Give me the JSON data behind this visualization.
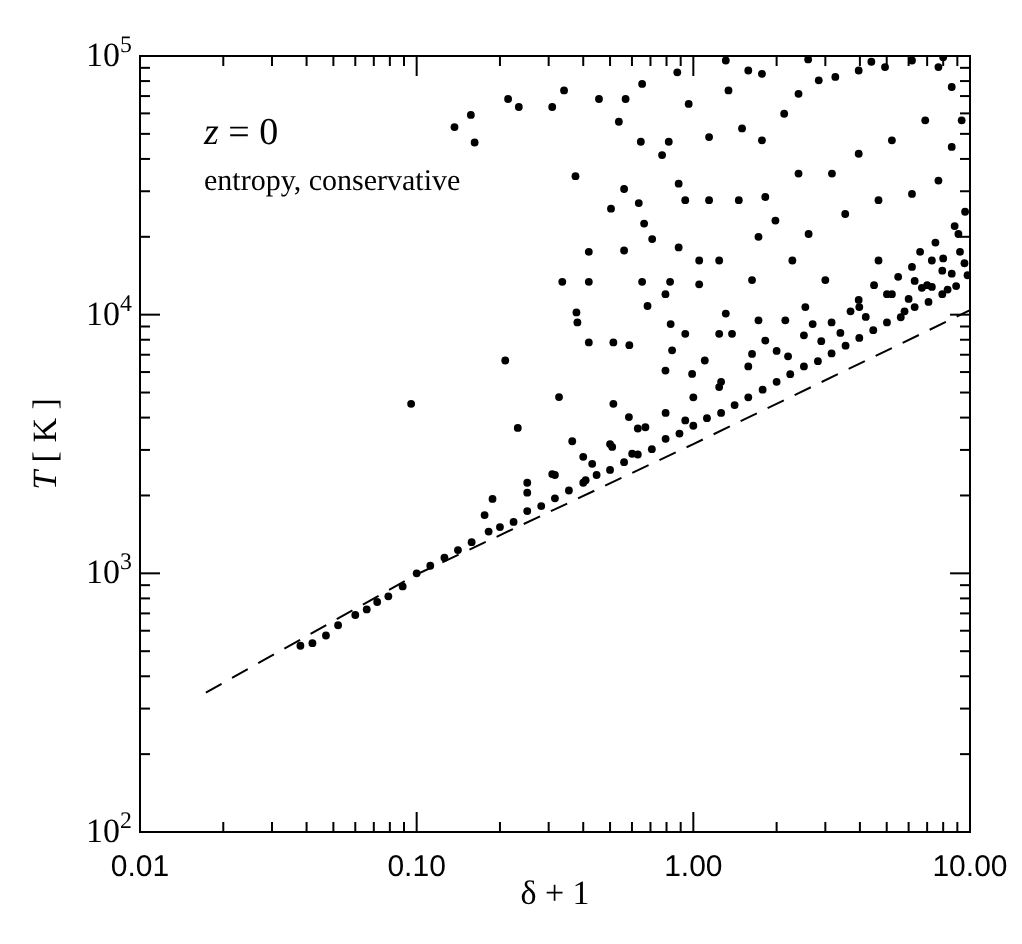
{
  "chart_data": {
    "type": "scatter",
    "xlabel": "δ + 1",
    "ylabel": "T [ K ]",
    "annotations": [
      "z = 0",
      "entropy, conservative"
    ],
    "log": "xy",
    "xlim": [
      0.01,
      10
    ],
    "ylim": [
      100,
      100000
    ],
    "xticks": [
      0.01,
      {
        "value": 0.02,
        "label": null
      },
      {
        "value": 0.03,
        "label": null
      },
      {
        "value": 0.04,
        "label": null
      },
      {
        "value": 0.05,
        "label": null
      },
      {
        "value": 0.06,
        "label": null
      },
      {
        "value": 0.07,
        "label": null
      },
      {
        "value": 0.08,
        "label": null
      },
      {
        "value": 0.09,
        "label": null
      },
      {
        "value": 0.1,
        "label": "0.10"
      },
      {
        "value": 0.2,
        "label": null
      },
      {
        "value": 0.3,
        "label": null
      },
      {
        "value": 0.4,
        "label": null
      },
      {
        "value": 0.5,
        "label": null
      },
      {
        "value": 0.6,
        "label": null
      },
      {
        "value": 0.7,
        "label": null
      },
      {
        "value": 0.8,
        "label": null
      },
      {
        "value": 0.9,
        "label": null
      },
      {
        "value": 1,
        "label": "1.00"
      },
      {
        "value": 2,
        "label": null
      },
      {
        "value": 3,
        "label": null
      },
      {
        "value": 4,
        "label": null
      },
      {
        "value": 5,
        "label": null
      },
      {
        "value": 6,
        "label": null
      },
      {
        "value": 7,
        "label": null
      },
      {
        "value": 8,
        "label": null
      },
      {
        "value": 9,
        "label": null
      },
      {
        "value": 10,
        "label": "10.00"
      }
    ],
    "yticks": [
      {
        "value": 100,
        "label": "10$^{2}$"
      },
      {
        "value": 200,
        "label": null
      },
      {
        "value": 300,
        "label": null
      },
      {
        "value": 400,
        "label": null
      },
      {
        "value": 500,
        "label": null
      },
      {
        "value": 600,
        "label": null
      },
      {
        "value": 700,
        "label": null
      },
      {
        "value": 800,
        "label": null
      },
      {
        "value": 900,
        "label": null
      },
      {
        "value": 1000,
        "label": "10$^{3}$"
      },
      {
        "value": 2000,
        "label": null
      },
      {
        "value": 3000,
        "label": null
      },
      {
        "value": 4000,
        "label": null
      },
      {
        "value": 5000,
        "label": null
      },
      {
        "value": 6000,
        "label": null
      },
      {
        "value": 7000,
        "label": null
      },
      {
        "value": 8000,
        "label": null
      },
      {
        "value": 9000,
        "label": null
      },
      {
        "value": 10000,
        "label": "10$^{4}$"
      },
      {
        "value": 20000,
        "label": null
      },
      {
        "value": 30000,
        "label": null
      },
      {
        "value": 40000,
        "label": null
      },
      {
        "value": 50000,
        "label": null
      },
      {
        "value": 60000,
        "label": null
      },
      {
        "value": 70000,
        "label": null
      },
      {
        "value": 80000,
        "label": null
      },
      {
        "value": 90000,
        "label": null
      },
      {
        "value": 100000,
        "label": "10$^{5}$"
      }
    ],
    "series": [
      {
        "type": "line",
        "color": "#000000",
        "line_style": "dashed",
        "marker": "none",
        "x": [
          0.0173,
          0.1,
          1,
          10
        ],
        "values": [
          346,
          990,
          3160,
          10400
        ]
      },
      {
        "type": "scatter",
        "color": "#000000",
        "marker": "circle",
        "x": [
          0.038,
          0.042,
          0.047,
          0.052,
          0.06,
          0.066,
          0.072,
          0.079,
          0.089,
          0.1,
          0.112,
          0.126,
          0.141,
          0.158,
          0.182,
          0.2,
          0.224,
          0.251,
          0.282,
          0.316,
          0.355,
          0.4,
          0.447,
          0.5,
          0.562,
          0.63,
          0.708,
          0.794,
          0.891,
          1,
          1.12,
          1.26,
          1.41,
          1.58,
          1.78,
          2,
          2.24,
          2.51,
          2.82,
          3.16,
          3.55,
          3.98,
          4.47,
          5.01,
          5.62,
          6.31,
          7.08,
          7.94,
          8.91,
          0.251,
          0.316,
          0.4,
          0.5,
          0.63,
          0.794,
          1,
          1.26,
          1.58,
          2,
          2.51,
          3.16,
          3.98,
          5.01,
          6.31,
          7.94,
          9.55,
          0.137,
          0.157,
          0.162,
          0.214,
          0.234,
          0.309,
          0.341,
          0.456,
          0.569,
          0.653,
          0.375,
          0.562,
          0.504,
          0.419,
          0.336,
          0.419,
          0.378,
          0.381,
          0.419,
          0.514,
          0.587,
          0.209,
          0.0955,
          0.232,
          0.327,
          0.514,
          0.365,
          0.309,
          0.188,
          0.176,
          0.251,
          0.875,
          0.962,
          1.31,
          1.34,
          1.58,
          1.77,
          1.14,
          0.815,
          0.771,
          1.5,
          1.77,
          2.13,
          2.4,
          2.84,
          3.26,
          3.96,
          4.93,
          6.17,
          7.69,
          8.59,
          9.33,
          0.885,
          0.935,
          1.14,
          1.46,
          1.82,
          2.4,
          3.17,
          3.96,
          5.22,
          6.89,
          8.59,
          0.885,
          1.05,
          1.24,
          1.72,
          1.98,
          2.61,
          3.54,
          4.67,
          6.17,
          7.69,
          9.08,
          0.793,
          1.05,
          1.31,
          1.63,
          2.28,
          3,
          4.67,
          6.17,
          7.28,
          8.59,
          0.935,
          1.24,
          1.72,
          2.54,
          3.96,
          5.22,
          7.28,
          0.635,
          0.664,
          0.71,
          0.646,
          0.538,
          0.562,
          0.653,
          0.683,
          0.824,
          0.828,
          0.838,
          0.99,
          1.1,
          0.935,
          0.793,
          0.585,
          0.671,
          0.601,
          0.509,
          0.431,
          0.408,
          1.63,
          1.82,
          2.15,
          1.38,
          1.24,
          5.5,
          6,
          6.6,
          7,
          7.5,
          8,
          8.3,
          8.8,
          9.2,
          9.6,
          4.2,
          4.5,
          3.4,
          3.7,
          2.9,
          2.7,
          2.2,
          5.8,
          6.7,
          9.8,
          2.6,
          4.4,
          8
        ],
        "values": [
          525,
          537,
          575,
          630,
          690,
          725,
          775,
          815,
          890,
          1000,
          1070,
          1150,
          1230,
          1320,
          1450,
          1510,
          1580,
          1740,
          1820,
          1950,
          2090,
          2240,
          2400,
          2510,
          2690,
          2880,
          3020,
          3310,
          3470,
          3720,
          3980,
          4170,
          4470,
          4790,
          5130,
          5500,
          5890,
          6310,
          6610,
          7080,
          7590,
          8130,
          8710,
          9330,
          9770,
          10700,
          11200,
          12000,
          12900,
          2240,
          2400,
          2820,
          3160,
          3630,
          4170,
          4790,
          5500,
          6310,
          7240,
          8320,
          9330,
          10700,
          12000,
          13500,
          14800,
          15800,
          53100,
          59200,
          46300,
          68200,
          63500,
          63500,
          73600,
          68200,
          68200,
          78000,
          34300,
          30600,
          25700,
          17500,
          13400,
          13400,
          10200,
          9330,
          7810,
          7810,
          7620,
          6650,
          4520,
          3650,
          4800,
          4520,
          3240,
          2420,
          1940,
          1680,
          2050,
          86500,
          65300,
          96100,
          73600,
          87900,
          85300,
          48600,
          46600,
          41400,
          52500,
          47200,
          59800,
          71400,
          80500,
          83000,
          87900,
          90600,
          96100,
          90600,
          75900,
          56400,
          32100,
          27700,
          27700,
          27700,
          28500,
          35100,
          35100,
          41900,
          47200,
          56400,
          44500,
          18200,
          16200,
          16200,
          20000,
          23100,
          20500,
          24500,
          27700,
          29300,
          33000,
          20500,
          12000,
          13100,
          10100,
          13600,
          16200,
          13600,
          16200,
          15300,
          16200,
          14400,
          8430,
          8430,
          9510,
          10700,
          11400,
          12000,
          12800,
          27000,
          22500,
          19600,
          46600,
          55700,
          17700,
          13400,
          10800,
          13400,
          9200,
          7280,
          5900,
          6650,
          3900,
          6080,
          4020,
          3670,
          2900,
          3080,
          2650,
          2290,
          7050,
          7940,
          9510,
          8430,
          5250,
          14000,
          11500,
          17500,
          13000,
          19000,
          16500,
          12500,
          22000,
          17500,
          25000,
          9800,
          13000,
          8500,
          10300,
          7900,
          9200,
          6900,
          10300,
          12700,
          14200,
          97000,
          95000,
          99000
        ]
      }
    ]
  }
}
